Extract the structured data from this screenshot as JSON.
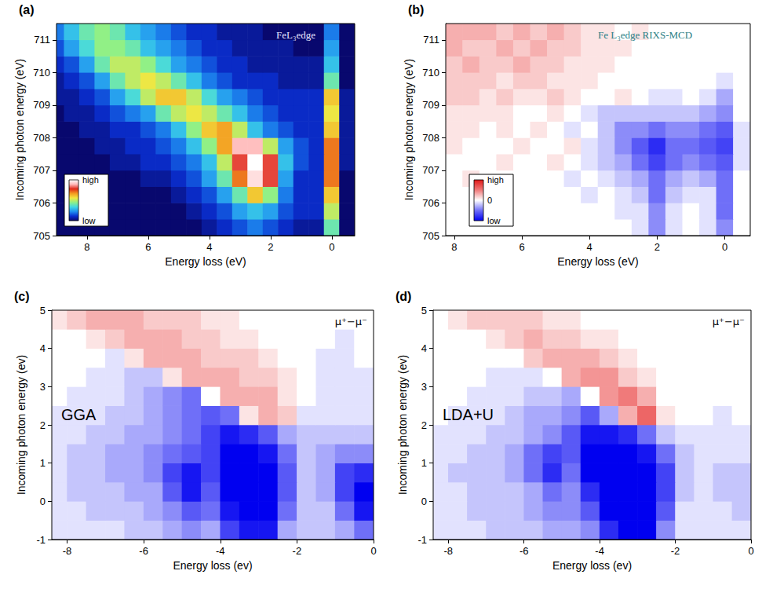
{
  "chart_data": [
    {
      "type": "heatmap",
      "panel": "(a)",
      "title": "FeL₃edge",
      "x_label": "Energy loss (eV)",
      "y_label": "Incoming photon energy (eV)",
      "xlim": [
        9,
        -0.75
      ],
      "xticks": [
        8,
        6,
        4,
        2,
        0
      ],
      "ylim": [
        705,
        711.5
      ],
      "yticks": [
        705,
        706,
        707,
        708,
        709,
        710,
        711
      ],
      "color_range": [
        0,
        10
      ],
      "colorbar_ticks": [
        {
          "value": 10,
          "label": "high"
        },
        {
          "value": 0,
          "label": "low"
        }
      ],
      "x": [
        9,
        8.5,
        8,
        7.5,
        7,
        6.5,
        6,
        5.5,
        5,
        4.5,
        4,
        3.5,
        3,
        2.5,
        2,
        1.5,
        1,
        0.5,
        0,
        -0.5
      ],
      "y": [
        705.25,
        705.75,
        706.25,
        706.75,
        707.25,
        707.75,
        708.25,
        708.75,
        709.25,
        709.75,
        710.25,
        710.75,
        711.25
      ],
      "values": [
        [
          0,
          0,
          0,
          0,
          0,
          0,
          0,
          0,
          0,
          0,
          0.5,
          1,
          1.5,
          2,
          1.5,
          1,
          0.5,
          0.5,
          4,
          0
        ],
        [
          0,
          0,
          0,
          0,
          0,
          0,
          0,
          0,
          0,
          0.5,
          1,
          1.5,
          2.5,
          3,
          2.5,
          1.5,
          1,
          1,
          5,
          0
        ],
        [
          0,
          0,
          0,
          0,
          0,
          0,
          0,
          0,
          0.5,
          1,
          1.5,
          2.5,
          4,
          6,
          4.5,
          2,
          1,
          1,
          6,
          0
        ],
        [
          0,
          0,
          0,
          0,
          0,
          0,
          0.5,
          0.5,
          1,
          1.5,
          2.5,
          4,
          7,
          9.5,
          8,
          2.5,
          1,
          1,
          7,
          0
        ],
        [
          0,
          0,
          0,
          0,
          0.5,
          0.5,
          1,
          1,
          1.5,
          2,
          3,
          5,
          8,
          10,
          8,
          3,
          1.5,
          1,
          7,
          0.5
        ],
        [
          0,
          0,
          0,
          0.5,
          0.5,
          1,
          1,
          1.5,
          2,
          3,
          4.5,
          6.5,
          9,
          9,
          5,
          2.5,
          1.5,
          1,
          7,
          0.5
        ],
        [
          0,
          0,
          0.5,
          0.5,
          1,
          1,
          1.5,
          2,
          3,
          4.5,
          6,
          6.5,
          5,
          3,
          2,
          1.5,
          1,
          1,
          6,
          0.5
        ],
        [
          0,
          0.5,
          0.5,
          1,
          1.5,
          2,
          2.5,
          4,
          5,
          5.5,
          5,
          4,
          3,
          2,
          1.5,
          1,
          1,
          1,
          5.5,
          0.5
        ],
        [
          0.5,
          0.5,
          1,
          1.5,
          2.5,
          3.5,
          5,
          6,
          6,
          5,
          3.5,
          2.5,
          2,
          1.5,
          1,
          1,
          1,
          1,
          6,
          0.5
        ],
        [
          0.5,
          1,
          1.5,
          2.5,
          4,
          5,
          5.5,
          5,
          4,
          3,
          2,
          1.5,
          1,
          1,
          1,
          0.5,
          0.5,
          0.5,
          4,
          0
        ],
        [
          1,
          1.5,
          2.5,
          4,
          5,
          5,
          4.5,
          3.5,
          2.5,
          2,
          1.5,
          1,
          1,
          0.5,
          0.5,
          0.5,
          0.5,
          0.5,
          3,
          0
        ],
        [
          1.5,
          2.5,
          3.5,
          4.5,
          4.5,
          4,
          3,
          2.5,
          2,
          1.5,
          1,
          1,
          0.5,
          0.5,
          0.5,
          0.5,
          0,
          0,
          2.5,
          0
        ],
        [
          2,
          3,
          4,
          4.5,
          4,
          3,
          2.5,
          2,
          1.5,
          1,
          1,
          0.5,
          0.5,
          0.5,
          0,
          0,
          0,
          0,
          2,
          0
        ]
      ]
    },
    {
      "type": "heatmap",
      "panel": "(b)",
      "title": "Fe L₃edge RIXS-MCD",
      "x_label": "Energy loss (eV)",
      "y_label": "Incoming photon energy (eV)",
      "xlim": [
        8.25,
        -0.75
      ],
      "xticks": [
        8,
        6,
        4,
        2,
        0
      ],
      "ylim": [
        705,
        711.5
      ],
      "yticks": [
        705,
        706,
        707,
        708,
        709,
        710,
        711
      ],
      "color_range": [
        -1,
        1
      ],
      "colorbar_ticks": [
        {
          "value": 1,
          "label": "high"
        },
        {
          "value": 0,
          "label": "0"
        },
        {
          "value": -1,
          "label": "low"
        }
      ],
      "x": [
        8,
        7.5,
        7,
        6.5,
        6,
        5.5,
        5,
        4.5,
        4,
        3.5,
        3,
        2.5,
        2,
        1.5,
        1,
        0.5,
        0,
        -0.5
      ],
      "y": [
        705.25,
        705.75,
        706.25,
        706.75,
        707.25,
        707.75,
        708.25,
        708.75,
        709.25,
        709.75,
        710.25,
        710.75,
        711.25
      ],
      "values": [
        [
          0,
          0,
          0,
          0,
          0,
          0,
          0,
          0,
          0,
          0,
          0,
          -0.1,
          -0.4,
          -0.1,
          0,
          -0.1,
          -0.4,
          0
        ],
        [
          0,
          0,
          0,
          0,
          0,
          0,
          0,
          0,
          0,
          0,
          -0.1,
          -0.1,
          -0.4,
          -0.1,
          0,
          -0.1,
          -0.5,
          0
        ],
        [
          0,
          0,
          0.1,
          0,
          0,
          0,
          0,
          0,
          -0.1,
          0,
          -0.1,
          -0.2,
          -0.5,
          -0.2,
          -0.1,
          -0.1,
          -0.5,
          0
        ],
        [
          0,
          0.1,
          0,
          0,
          0,
          0,
          0,
          -0.1,
          0,
          -0.1,
          -0.2,
          -0.3,
          -0.5,
          -0.3,
          -0.2,
          -0.3,
          -0.5,
          0
        ],
        [
          0,
          0,
          0,
          0.1,
          0,
          0,
          0.1,
          0,
          -0.1,
          -0.2,
          -0.3,
          -0.5,
          -0.7,
          -0.5,
          -0.4,
          -0.5,
          -0.6,
          -0.1
        ],
        [
          0.1,
          0,
          0,
          0,
          0.1,
          0,
          0,
          0.1,
          -0.1,
          -0.2,
          -0.4,
          -0.6,
          -0.8,
          -0.5,
          -0.5,
          -0.6,
          -0.7,
          -0.1
        ],
        [
          0.1,
          0.1,
          0,
          0.1,
          0,
          0.1,
          0,
          -0.1,
          0,
          -0.2,
          -0.4,
          -0.4,
          -0.5,
          -0.4,
          -0.4,
          -0.5,
          -0.6,
          -0.1
        ],
        [
          0.1,
          0.1,
          0.1,
          0.1,
          0,
          0,
          0.1,
          0,
          -0.1,
          -0.2,
          -0.2,
          -0.2,
          -0.2,
          -0.2,
          -0.2,
          -0.3,
          -0.4,
          0
        ],
        [
          0.2,
          0.2,
          0.1,
          0.2,
          0.1,
          0.1,
          0.2,
          0.1,
          0,
          0,
          0.1,
          0,
          -0.1,
          -0.1,
          0,
          -0.1,
          -0.3,
          0
        ],
        [
          0.2,
          0.2,
          0.2,
          0.1,
          0.2,
          0.2,
          0.1,
          0.1,
          0.1,
          0,
          0,
          0,
          0,
          0,
          0,
          0,
          -0.1,
          0
        ],
        [
          0.2,
          0.3,
          0.2,
          0.2,
          0.3,
          0.2,
          0.2,
          0.1,
          0.1,
          0.1,
          0,
          0,
          0,
          0,
          0,
          0,
          0,
          0
        ],
        [
          0.3,
          0.2,
          0.2,
          0.3,
          0.2,
          0.3,
          0.2,
          0.2,
          0.1,
          0.1,
          0.1,
          0,
          0,
          0,
          0,
          0,
          0,
          0
        ],
        [
          0.3,
          0.3,
          0.3,
          0.2,
          0.3,
          0.2,
          0.3,
          0.2,
          0.1,
          0.1,
          0,
          0.1,
          0,
          0,
          0,
          0,
          0,
          0
        ]
      ]
    },
    {
      "type": "heatmap",
      "panel": "(c)",
      "title": "GGA",
      "annotations": [
        "μ⁺−μ⁻"
      ],
      "x_label": "Energy loss (ev)",
      "y_label": "Incoming photon energy (ev)",
      "xlim": [
        -8.4,
        0
      ],
      "xticks": [
        -8,
        -6,
        -4,
        -2,
        0
      ],
      "ylim": [
        -1,
        5
      ],
      "yticks": [
        -1,
        0,
        1,
        2,
        3,
        4,
        5
      ],
      "color_range": [
        -1,
        1
      ],
      "x": [
        -8.25,
        -7.75,
        -7.25,
        -6.75,
        -6.25,
        -5.75,
        -5.25,
        -4.75,
        -4.25,
        -3.75,
        -3.25,
        -2.75,
        -2.25,
        -1.75,
        -1.25,
        -0.75,
        -0.25
      ],
      "y": [
        -0.75,
        -0.25,
        0.25,
        0.75,
        1.25,
        1.75,
        2.25,
        2.75,
        3.25,
        3.75,
        4.25,
        4.75
      ],
      "values": [
        [
          -0.1,
          -0.1,
          -0.1,
          -0.1,
          -0.2,
          -0.2,
          -0.3,
          -0.4,
          -0.3,
          -0.7,
          -0.9,
          -0.9,
          -0.3,
          -0.2,
          -0.2,
          -0.3,
          -0.5
        ],
        [
          -0.1,
          -0.1,
          -0.2,
          -0.2,
          -0.2,
          -0.3,
          -0.4,
          -0.6,
          -0.5,
          -0.9,
          -1,
          -1,
          -0.5,
          -0.2,
          -0.2,
          -0.5,
          -0.9
        ],
        [
          -0.1,
          -0.2,
          -0.2,
          -0.2,
          -0.3,
          -0.3,
          -0.6,
          -0.9,
          -0.6,
          -1,
          -1,
          -1,
          -0.6,
          -0.2,
          -0.3,
          -0.7,
          -1
        ],
        [
          -0.1,
          -0.2,
          -0.2,
          -0.3,
          -0.3,
          -0.4,
          -0.7,
          -0.9,
          -0.7,
          -1,
          -1,
          -1,
          -0.6,
          -0.2,
          -0.3,
          -0.7,
          -0.8
        ],
        [
          -0.1,
          -0.2,
          -0.2,
          -0.3,
          -0.3,
          -0.4,
          -0.5,
          -0.6,
          -0.7,
          -1,
          -1,
          -0.9,
          -0.5,
          -0.2,
          -0.3,
          -0.4,
          -0.4
        ],
        [
          -0.1,
          -0.1,
          -0.2,
          -0.2,
          -0.3,
          -0.3,
          -0.4,
          -0.5,
          -0.7,
          -0.9,
          -0.8,
          -0.6,
          -0.3,
          -0.2,
          -0.2,
          -0.2,
          -0.2
        ],
        [
          -0.1,
          -0.1,
          -0.1,
          -0.2,
          -0.2,
          -0.3,
          -0.4,
          -0.5,
          -0.6,
          -0.5,
          0.1,
          0.3,
          0.2,
          -0.1,
          -0.1,
          -0.1,
          -0.1
        ],
        [
          0,
          -0.1,
          -0.1,
          -0.1,
          -0.2,
          -0.3,
          -0.4,
          -0.5,
          0,
          0.3,
          0.3,
          0.3,
          0.1,
          0,
          -0.1,
          -0.1,
          -0.1
        ],
        [
          0,
          0,
          -0.1,
          -0.1,
          -0.2,
          -0.2,
          0.1,
          0.3,
          0.3,
          0.3,
          0.2,
          0.2,
          0.1,
          0,
          -0.1,
          -0.1,
          -0.1
        ],
        [
          0,
          0,
          0,
          -0.1,
          0.1,
          0.3,
          0.3,
          0.3,
          0.2,
          0.2,
          0.2,
          0.1,
          0,
          0,
          -0.1,
          -0.1,
          0
        ],
        [
          0,
          0,
          0.1,
          0.2,
          0.3,
          0.3,
          0.3,
          0.2,
          0.2,
          0.1,
          0.1,
          0,
          0,
          0,
          0,
          -0.1,
          0
        ],
        [
          0.1,
          0.2,
          0.3,
          0.3,
          0.3,
          0.2,
          0.2,
          0.2,
          0.1,
          0.1,
          0,
          0,
          0,
          0,
          0,
          0,
          0
        ]
      ]
    },
    {
      "type": "heatmap",
      "panel": "(d)",
      "title": "LDA+U",
      "annotations": [
        "μ⁺−μ⁻"
      ],
      "x_label": "Energy loss (ev)",
      "y_label": "Incoming photon energy (ev)",
      "xlim": [
        -8.4,
        0
      ],
      "xticks": [
        -8,
        -6,
        -4,
        -2,
        0
      ],
      "ylim": [
        -1,
        5
      ],
      "yticks": [
        -1,
        0,
        1,
        2,
        3,
        4,
        5
      ],
      "color_range": [
        -1,
        1
      ],
      "x": [
        -8.25,
        -7.75,
        -7.25,
        -6.75,
        -6.25,
        -5.75,
        -5.25,
        -4.75,
        -4.25,
        -3.75,
        -3.25,
        -2.75,
        -2.25,
        -1.75,
        -1.25,
        -0.75,
        -0.25
      ],
      "y": [
        -0.75,
        -0.25,
        0.25,
        0.75,
        1.25,
        1.75,
        2.25,
        2.75,
        3.25,
        3.75,
        4.25,
        4.75
      ],
      "values": [
        [
          -0.1,
          -0.1,
          -0.1,
          -0.2,
          -0.2,
          -0.2,
          -0.3,
          -0.3,
          -0.4,
          -0.8,
          -1,
          -1,
          -0.4,
          -0.1,
          -0.1,
          -0.1,
          -0.1
        ],
        [
          -0.1,
          -0.1,
          -0.2,
          -0.2,
          -0.2,
          -0.3,
          -0.4,
          -0.4,
          -0.6,
          -1,
          -1,
          -1,
          -0.6,
          -0.1,
          -0.1,
          -0.1,
          -0.2
        ],
        [
          -0.1,
          -0.1,
          -0.2,
          -0.2,
          -0.2,
          -0.3,
          -0.5,
          -0.4,
          -0.8,
          -1,
          -1,
          -1,
          -0.7,
          -0.2,
          -0.1,
          -0.2,
          -0.2
        ],
        [
          -0.1,
          -0.2,
          -0.2,
          -0.2,
          -0.3,
          -0.5,
          -0.8,
          -0.5,
          -1,
          -1,
          -1,
          -1,
          -0.7,
          -0.2,
          -0.1,
          -0.2,
          -0.2
        ],
        [
          -0.1,
          -0.1,
          -0.2,
          -0.2,
          -0.3,
          -0.5,
          -0.7,
          -0.6,
          -1,
          -1,
          -1,
          -0.9,
          -0.5,
          -0.2,
          -0.1,
          -0.1,
          -0.1
        ],
        [
          -0.1,
          -0.1,
          -0.1,
          -0.2,
          -0.2,
          -0.3,
          -0.4,
          -0.6,
          -0.9,
          -0.9,
          -0.8,
          -0.5,
          -0.2,
          -0.1,
          -0.1,
          -0.1,
          -0.1
        ],
        [
          0,
          -0.1,
          -0.1,
          -0.1,
          -0.2,
          -0.3,
          -0.3,
          -0.4,
          -0.6,
          -0.3,
          0.3,
          0.6,
          0.1,
          0,
          0,
          -0.1,
          0
        ],
        [
          0,
          0,
          -0.1,
          -0.1,
          -0.1,
          -0.2,
          -0.2,
          -0.3,
          0,
          0.4,
          0.5,
          0.3,
          0,
          0,
          0,
          0,
          0
        ],
        [
          0,
          0,
          0,
          -0.1,
          -0.1,
          -0.1,
          0,
          0.3,
          0.4,
          0.4,
          0.2,
          0.1,
          0,
          0,
          0,
          0,
          0
        ],
        [
          0,
          0,
          0,
          0,
          0,
          0.2,
          0.3,
          0.3,
          0.3,
          0.2,
          0.1,
          0,
          0,
          0,
          0,
          0,
          0
        ],
        [
          0,
          0,
          0,
          0.1,
          0.2,
          0.3,
          0.2,
          0.2,
          0.1,
          0.1,
          0,
          0,
          0,
          0,
          0,
          0,
          0
        ],
        [
          0,
          0.1,
          0.2,
          0.2,
          0.2,
          0.2,
          0.1,
          0.1,
          0,
          0,
          0,
          0,
          0,
          0,
          0,
          0,
          0
        ]
      ]
    }
  ]
}
